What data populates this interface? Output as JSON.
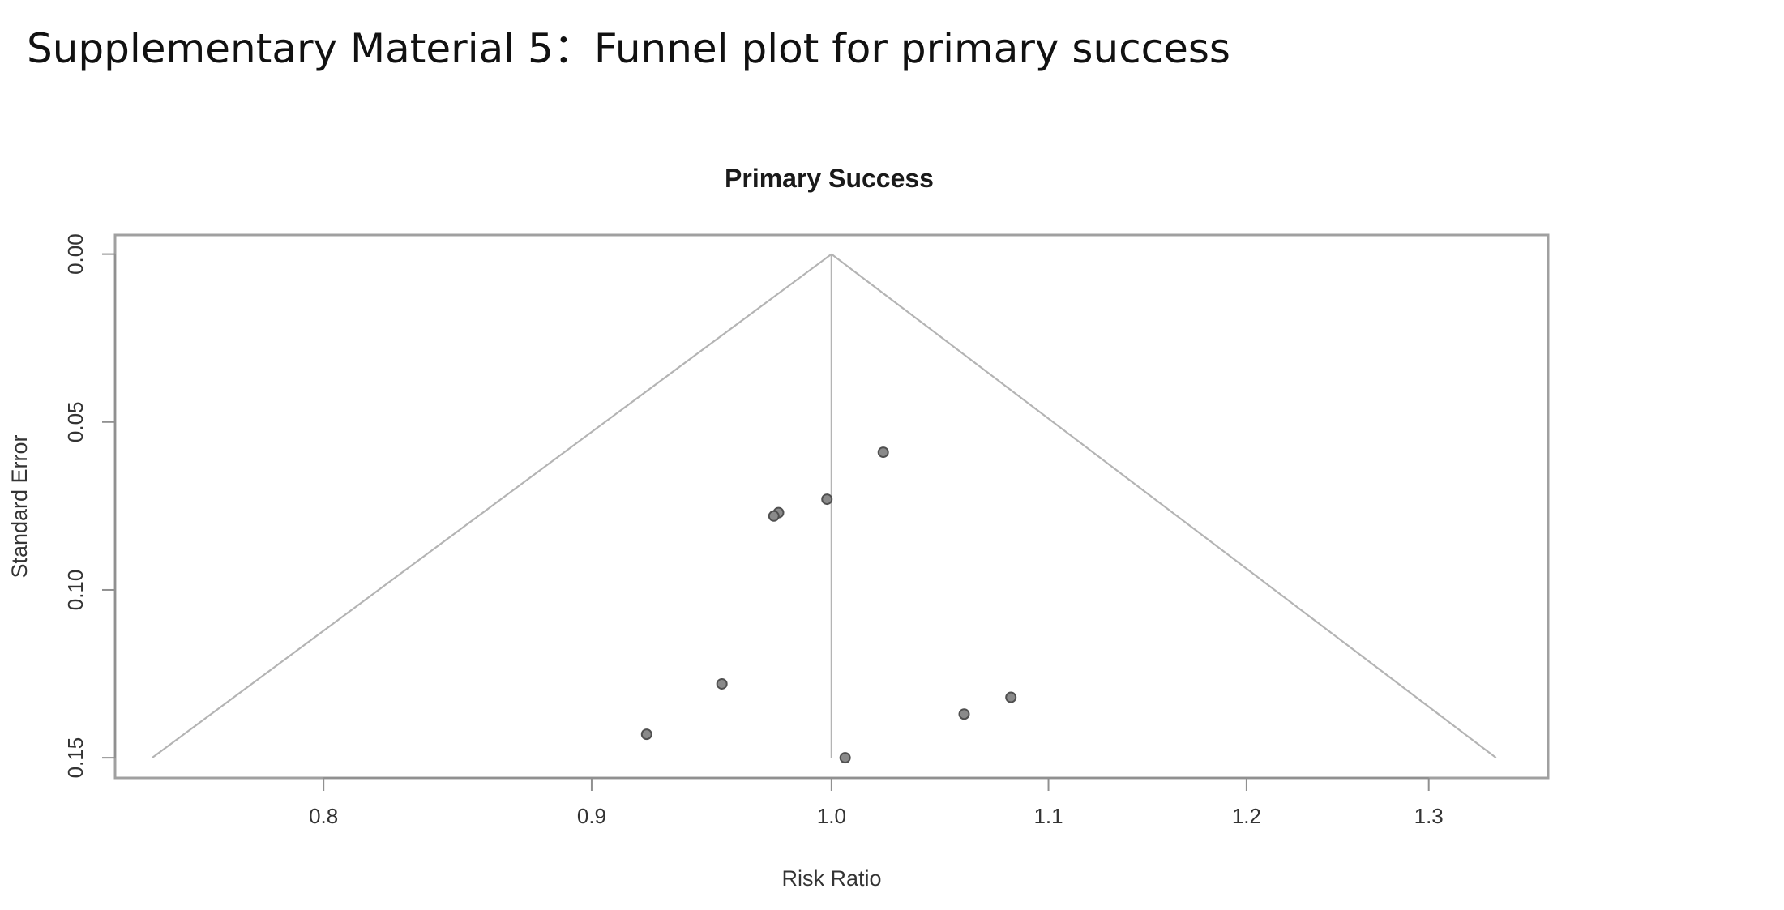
{
  "heading": "Supplementary Material 5：Funnel plot for primary success",
  "chart_data": {
    "type": "scatter",
    "title": "Primary Success",
    "xlabel": "Risk Ratio",
    "ylabel": "Standard Error",
    "x_ticks": [
      0.8,
      0.9,
      1.0,
      1.1,
      1.2,
      1.3
    ],
    "x_tick_labels": [
      "0.8",
      "0.9",
      "1.0",
      "1.1",
      "1.2",
      "1.3"
    ],
    "y_ticks": [
      0.0,
      0.05,
      0.1,
      0.15
    ],
    "y_tick_labels": [
      "0.00",
      "0.05",
      "0.10",
      "0.15"
    ],
    "xlim": [
      0.73,
      1.37
    ],
    "ylim": [
      0.156,
      -0.0057
    ],
    "x_scale": "log",
    "y_reversed": true,
    "grid": false,
    "legend": "none",
    "summary_estimate": 1.0,
    "funnel": {
      "apex": [
        1.0,
        0.0
      ],
      "left_base": [
        0.742,
        0.15
      ],
      "right_base": [
        1.339,
        0.15
      ]
    },
    "points": [
      {
        "x": 1.023,
        "y": 0.059
      },
      {
        "x": 0.998,
        "y": 0.073
      },
      {
        "x": 0.977,
        "y": 0.077
      },
      {
        "x": 0.975,
        "y": 0.078
      },
      {
        "x": 0.953,
        "y": 0.128
      },
      {
        "x": 0.922,
        "y": 0.143
      },
      {
        "x": 1.06,
        "y": 0.137
      },
      {
        "x": 1.082,
        "y": 0.132
      },
      {
        "x": 1.006,
        "y": 0.15
      }
    ],
    "colors": {
      "point_fill": "#8a8a8a",
      "point_stroke": "#505050",
      "funnel_line": "#b4b4b4",
      "frame": "#a0a0a0"
    }
  }
}
